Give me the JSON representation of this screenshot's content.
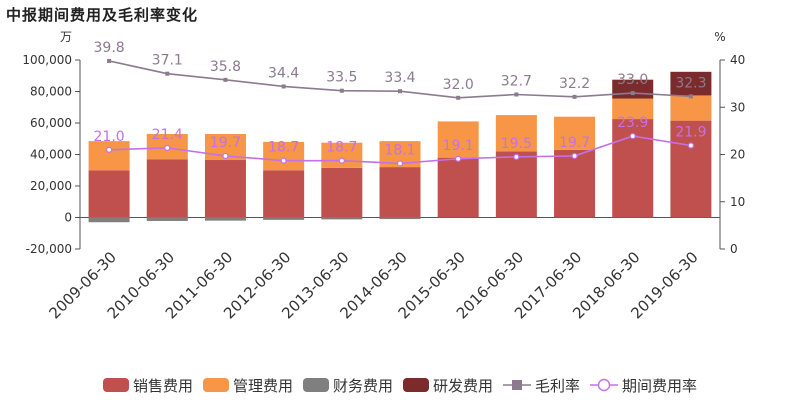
{
  "title": "中报期间费用及毛利率变化",
  "chart_data": {
    "type": "bar",
    "stacked": true,
    "categories": [
      "2009-06-30",
      "2010-06-30",
      "2011-06-30",
      "2012-06-30",
      "2013-06-30",
      "2014-06-30",
      "2015-06-30",
      "2016-06-30",
      "2017-06-30",
      "2018-06-30",
      "2019-06-30"
    ],
    "left_axis": {
      "unit": "万",
      "ylim": [
        -20000,
        100000
      ],
      "ticks": [
        "-20,000",
        "0",
        "20,000",
        "40,000",
        "60,000",
        "80,000",
        "100,000"
      ]
    },
    "right_axis": {
      "unit": "%",
      "ylim": [
        0,
        40
      ],
      "ticks": [
        "0",
        "10",
        "20",
        "30",
        "40"
      ]
    },
    "series": [
      {
        "name": "销售费用",
        "color": "#c0504d",
        "values": [
          30000,
          37000,
          36500,
          30000,
          31500,
          32000,
          38000,
          42000,
          43000,
          62500,
          61500
        ]
      },
      {
        "name": "管理费用",
        "color": "#f79646",
        "values": [
          18500,
          16000,
          16500,
          18000,
          16000,
          16500,
          23000,
          23000,
          21000,
          13000,
          16000
        ]
      },
      {
        "name": "财务费用",
        "color": "#7f7f7f",
        "values": [
          -3000,
          -2200,
          -2000,
          -1500,
          -1200,
          -1000,
          0,
          0,
          0,
          0,
          0
        ]
      },
      {
        "name": "研发费用",
        "color": "#7b2b2b",
        "values": [
          0,
          0,
          0,
          0,
          0,
          0,
          0,
          0,
          0,
          12000,
          15000
        ]
      }
    ],
    "lines": [
      {
        "name": "毛利率",
        "color": "#8c7b8f",
        "marker": "square",
        "axis": "right",
        "values": [
          39.8,
          37.1,
          35.8,
          34.4,
          33.5,
          33.4,
          32.0,
          32.7,
          32.2,
          33.0,
          32.3
        ],
        "labels": [
          "39.8",
          "37.1",
          "35.8",
          "34.4",
          "33.5",
          "33.4",
          "32.0",
          "32.7",
          "32.2",
          "33.0",
          "32.3"
        ]
      },
      {
        "name": "期间费用率",
        "color": "#c471e8",
        "marker": "circle",
        "axis": "right",
        "values": [
          21.0,
          21.4,
          19.7,
          18.7,
          18.7,
          18.1,
          19.1,
          19.5,
          19.7,
          23.9,
          21.9
        ],
        "labels": [
          "21.0",
          "21.4",
          "19.7",
          "18.7",
          "18.7",
          "18.1",
          "19.1",
          "19.5",
          "19.7",
          "23.9",
          "21.9"
        ]
      }
    ],
    "legend": [
      "销售费用",
      "管理费用",
      "财务费用",
      "研发费用",
      "毛利率",
      "期间费用率"
    ],
    "legend_position": "bottom",
    "grid": false
  }
}
